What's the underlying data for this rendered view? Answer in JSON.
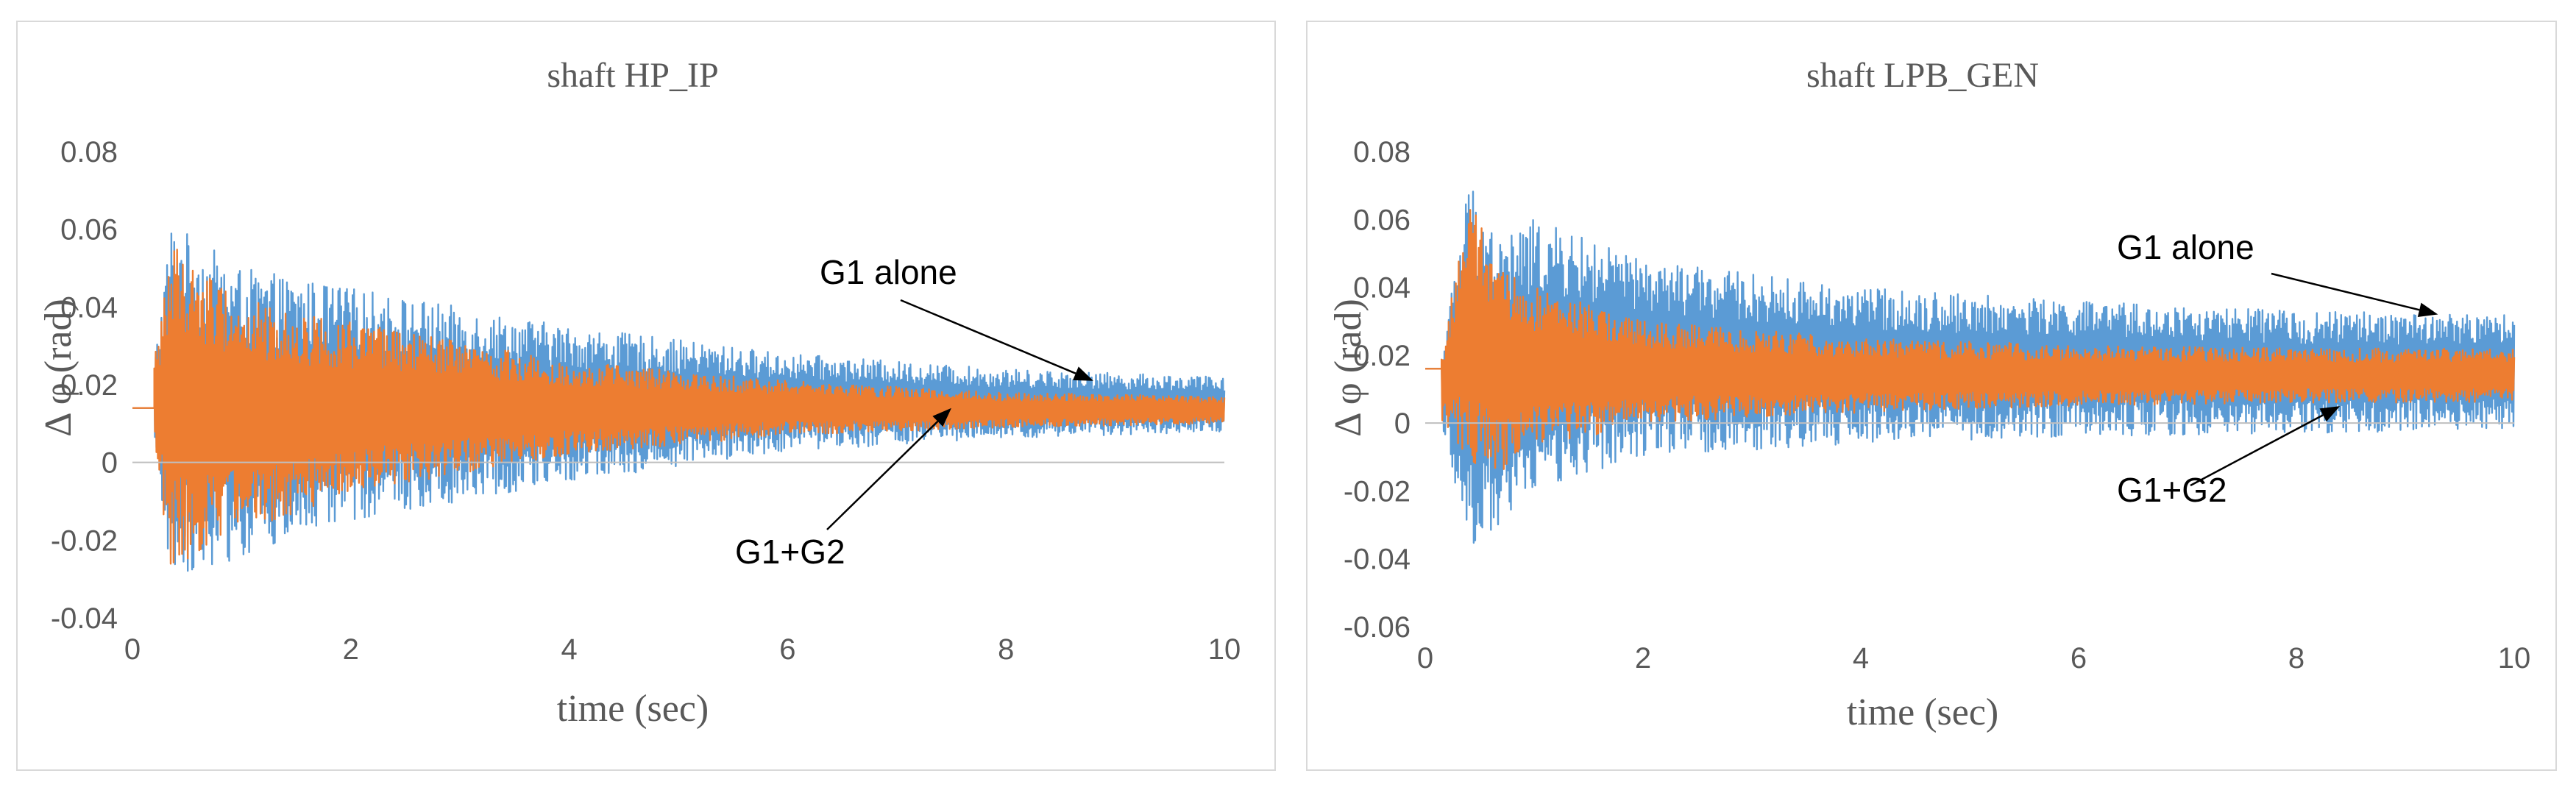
{
  "colors": {
    "g1_alone": "#5B9BD5",
    "g1_g2": "#ED7D31",
    "axis": "#BFBFBF",
    "text": "#595959",
    "annotation": "#000000"
  },
  "chart_data": [
    {
      "type": "line",
      "title": "shaft HP_IP",
      "xlabel": "time (sec)",
      "ylabel": "Δ φ (rad)",
      "xlim": [
        0,
        10
      ],
      "ylim": [
        -0.04,
        0.08
      ],
      "x_ticks": [
        0,
        2,
        4,
        6,
        8,
        10
      ],
      "y_ticks": [
        -0.04,
        -0.02,
        0,
        0.02,
        0.04,
        0.06,
        0.08
      ],
      "x_tick_labels": [
        "0",
        "2",
        "4",
        "6",
        "8",
        "10"
      ],
      "y_tick_labels": [
        "-0.04",
        "-0.02",
        "0",
        "0.02",
        "0.04",
        "0.06",
        "0.08"
      ],
      "grid": false,
      "legend": "none",
      "series": [
        {
          "name": "G1 alone",
          "color": "#5B9BD5",
          "initial_value": 0.014,
          "event_time": 0.2,
          "envelope_x": [
            0.2,
            0.35,
            1,
            2,
            4,
            6,
            8,
            10
          ],
          "upper": [
            0.026,
            0.062,
            0.05,
            0.045,
            0.035,
            0.028,
            0.024,
            0.022
          ],
          "lower": [
            0.002,
            -0.029,
            -0.025,
            -0.015,
            -0.005,
            0.003,
            0.006,
            0.008
          ]
        },
        {
          "name": "G1+G2",
          "color": "#ED7D31",
          "initial_value": 0.014,
          "event_time": 0.2,
          "envelope_x": [
            0.2,
            0.35,
            1,
            2,
            4,
            6,
            8,
            10
          ],
          "upper": [
            0.026,
            0.057,
            0.042,
            0.036,
            0.026,
            0.021,
            0.018,
            0.017
          ],
          "lower": [
            0.002,
            -0.027,
            -0.018,
            -0.008,
            0.002,
            0.007,
            0.009,
            0.01
          ]
        }
      ],
      "annotations": [
        {
          "text": "G1 alone",
          "target": [
            8.8,
            0.021
          ]
        },
        {
          "text": "G1+G2",
          "target": [
            7.5,
            0.014
          ]
        }
      ]
    },
    {
      "type": "line",
      "title": "shaft LPB_GEN",
      "xlabel": "time (sec)",
      "ylabel": "Δ φ (rad)",
      "xlim": [
        0,
        10
      ],
      "ylim": [
        -0.06,
        0.08
      ],
      "x_ticks": [
        0,
        2,
        4,
        6,
        8,
        10
      ],
      "y_ticks": [
        -0.06,
        -0.04,
        -0.02,
        0,
        0.02,
        0.04,
        0.06,
        0.08
      ],
      "x_tick_labels": [
        "0",
        "2",
        "4",
        "6",
        "8",
        "10"
      ],
      "y_tick_labels": [
        "-0.06",
        "-0.04",
        "-0.02",
        "0",
        "0.02",
        "0.04",
        "0.06",
        "0.08"
      ],
      "grid": false,
      "legend": "none",
      "series": [
        {
          "name": "G1 alone",
          "color": "#5B9BD5",
          "initial_value": 0.016,
          "event_time": 0.15,
          "envelope_x": [
            0.15,
            0.4,
            0.7,
            1,
            2,
            4,
            6,
            8,
            10
          ],
          "upper": [
            0.02,
            0.073,
            0.055,
            0.06,
            0.048,
            0.04,
            0.036,
            0.033,
            0.032
          ],
          "lower": [
            0.0,
            -0.037,
            -0.03,
            -0.02,
            -0.01,
            -0.006,
            -0.004,
            -0.003,
            -0.002
          ]
        },
        {
          "name": "G1+G2",
          "color": "#ED7D31",
          "initial_value": 0.016,
          "event_time": 0.15,
          "envelope_x": [
            0.15,
            0.4,
            0.7,
            1,
            2,
            4,
            6,
            8,
            10
          ],
          "upper": [
            0.02,
            0.066,
            0.045,
            0.04,
            0.03,
            0.025,
            0.023,
            0.022,
            0.022
          ],
          "lower": [
            0.0,
            -0.012,
            -0.015,
            -0.008,
            0.0,
            0.003,
            0.005,
            0.006,
            0.006
          ]
        }
      ],
      "annotations": [
        {
          "text": "G1 alone",
          "target": [
            9.3,
            0.032
          ]
        },
        {
          "text": "G1+G2",
          "target": [
            8.4,
            0.005
          ]
        }
      ]
    }
  ]
}
